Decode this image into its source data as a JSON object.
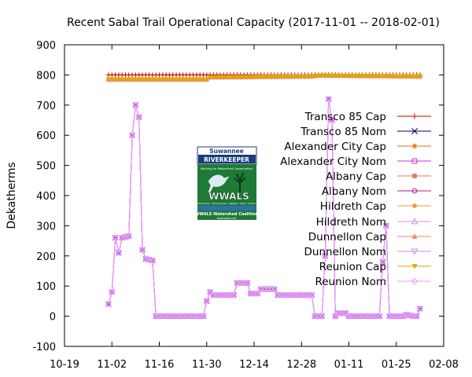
{
  "chart_data": {
    "type": "line",
    "title": "Recent Sabal Trail Operational Capacity (2017-11-01 -- 2018-02-01)",
    "ylabel": "Dekatherms",
    "xlabel": "",
    "ylim": [
      -100,
      900
    ],
    "yticks": [
      "-100",
      "0",
      "100",
      "200",
      "300",
      "400",
      "500",
      "600",
      "700",
      "800",
      "900"
    ],
    "xlim": [
      "2017-10-19",
      "2018-02-08"
    ],
    "xticks": [
      {
        "date": "2017-10-19",
        "label": "10-19"
      },
      {
        "date": "2017-11-02",
        "label": "11-02"
      },
      {
        "date": "2017-11-16",
        "label": "11-16"
      },
      {
        "date": "2017-11-30",
        "label": "11-30"
      },
      {
        "date": "2017-12-14",
        "label": "12-14"
      },
      {
        "date": "2017-12-28",
        "label": "12-28"
      },
      {
        "date": "2018-01-11",
        "label": "01-11"
      },
      {
        "date": "2018-01-25",
        "label": "01-25"
      },
      {
        "date": "2018-02-08",
        "label": "02-08"
      }
    ],
    "legend_position": "right",
    "grid": false,
    "series": [
      {
        "name": "Transco 85 Cap",
        "color": "#cc0000",
        "marker": "plus",
        "profile": "cap_upper"
      },
      {
        "name": "Transco 85 Nom",
        "color": "#000066",
        "marker": "x",
        "profile": "nom"
      },
      {
        "name": "Alexander City Cap",
        "color": "#e86b00",
        "marker": "star",
        "profile": "cap_lower"
      },
      {
        "name": "Alexander City Nom",
        "color": "#cc33cc",
        "marker": "square-open",
        "profile": "nom"
      },
      {
        "name": "Albany Cap",
        "color": "#ee7766",
        "marker": "square",
        "profile": "cap_lower"
      },
      {
        "name": "Albany Nom",
        "color": "#aa2299",
        "marker": "circle-open",
        "profile": "nom"
      },
      {
        "name": "Hildreth Cap",
        "color": "#ee9944",
        "marker": "circle",
        "profile": "cap_lower"
      },
      {
        "name": "Hildreth Nom",
        "color": "#dd88ee",
        "marker": "triangle-open",
        "profile": "nom"
      },
      {
        "name": "Dunnellon Cap",
        "color": "#ee8866",
        "marker": "triangle",
        "profile": "cap_lower"
      },
      {
        "name": "Dunnellon Nom",
        "color": "#cc88ee",
        "marker": "inv-triangle-open",
        "profile": "nom"
      },
      {
        "name": "Reunion Cap",
        "color": "#ddaa00",
        "marker": "inv-triangle",
        "profile": "cap_lower"
      },
      {
        "name": "Reunion Nom",
        "color": "#ee99ff",
        "marker": "diamond-open",
        "profile": "nom"
      }
    ],
    "profiles": {
      "cap_upper": [
        [
          "2017-11-01",
          800
        ],
        [
          "2018-02-01",
          800
        ]
      ],
      "cap_lower": [
        [
          "2017-11-01",
          785
        ],
        [
          "2017-11-30",
          785
        ],
        [
          "2017-12-01",
          792
        ],
        [
          "2017-12-31",
          795
        ],
        [
          "2018-01-02",
          798
        ],
        [
          "2018-02-01",
          795
        ]
      ],
      "nom": [
        [
          "2017-11-01",
          40
        ],
        [
          "2017-11-02",
          80
        ],
        [
          "2017-11-03",
          260
        ],
        [
          "2017-11-04",
          210
        ],
        [
          "2017-11-05",
          260
        ],
        [
          "2017-11-07",
          265
        ],
        [
          "2017-11-08",
          600
        ],
        [
          "2017-11-09",
          700
        ],
        [
          "2017-11-10",
          660
        ],
        [
          "2017-11-11",
          220
        ],
        [
          "2017-11-12",
          190
        ],
        [
          "2017-11-14",
          185
        ],
        [
          "2017-11-15",
          0
        ],
        [
          "2017-11-29",
          0
        ],
        [
          "2017-11-30",
          50
        ],
        [
          "2017-12-01",
          80
        ],
        [
          "2017-12-02",
          70
        ],
        [
          "2017-12-08",
          70
        ],
        [
          "2017-12-09",
          110
        ],
        [
          "2017-12-12",
          110
        ],
        [
          "2017-12-13",
          75
        ],
        [
          "2017-12-15",
          75
        ],
        [
          "2017-12-16",
          90
        ],
        [
          "2017-12-20",
          90
        ],
        [
          "2017-12-21",
          70
        ],
        [
          "2017-12-31",
          70
        ],
        [
          "2018-01-01",
          0
        ],
        [
          "2018-01-03",
          0
        ],
        [
          "2018-01-04",
          200
        ],
        [
          "2018-01-05",
          720
        ],
        [
          "2018-01-06",
          650
        ],
        [
          "2018-01-07",
          0
        ],
        [
          "2018-01-08",
          10
        ],
        [
          "2018-01-10",
          10
        ],
        [
          "2018-01-11",
          0
        ],
        [
          "2018-01-20",
          0
        ],
        [
          "2018-01-21",
          180
        ],
        [
          "2018-01-22",
          300
        ],
        [
          "2018-01-23",
          0
        ],
        [
          "2018-01-27",
          0
        ],
        [
          "2018-01-28",
          5
        ],
        [
          "2018-01-30",
          0
        ],
        [
          "2018-01-31",
          0
        ],
        [
          "2018-02-01",
          25
        ]
      ]
    },
    "annotation_logo": {
      "line1": "Suwannee",
      "line2": "RIVERKEEPER",
      "tagline": "Working for Watershed Conservation",
      "name": "WWALS",
      "rivers": "Withlacoochee • Willacoochee • Alapaha • Little • Suwannee",
      "footer": "WWALS Watershed Coalition",
      "url": "www.wwals.net"
    }
  }
}
